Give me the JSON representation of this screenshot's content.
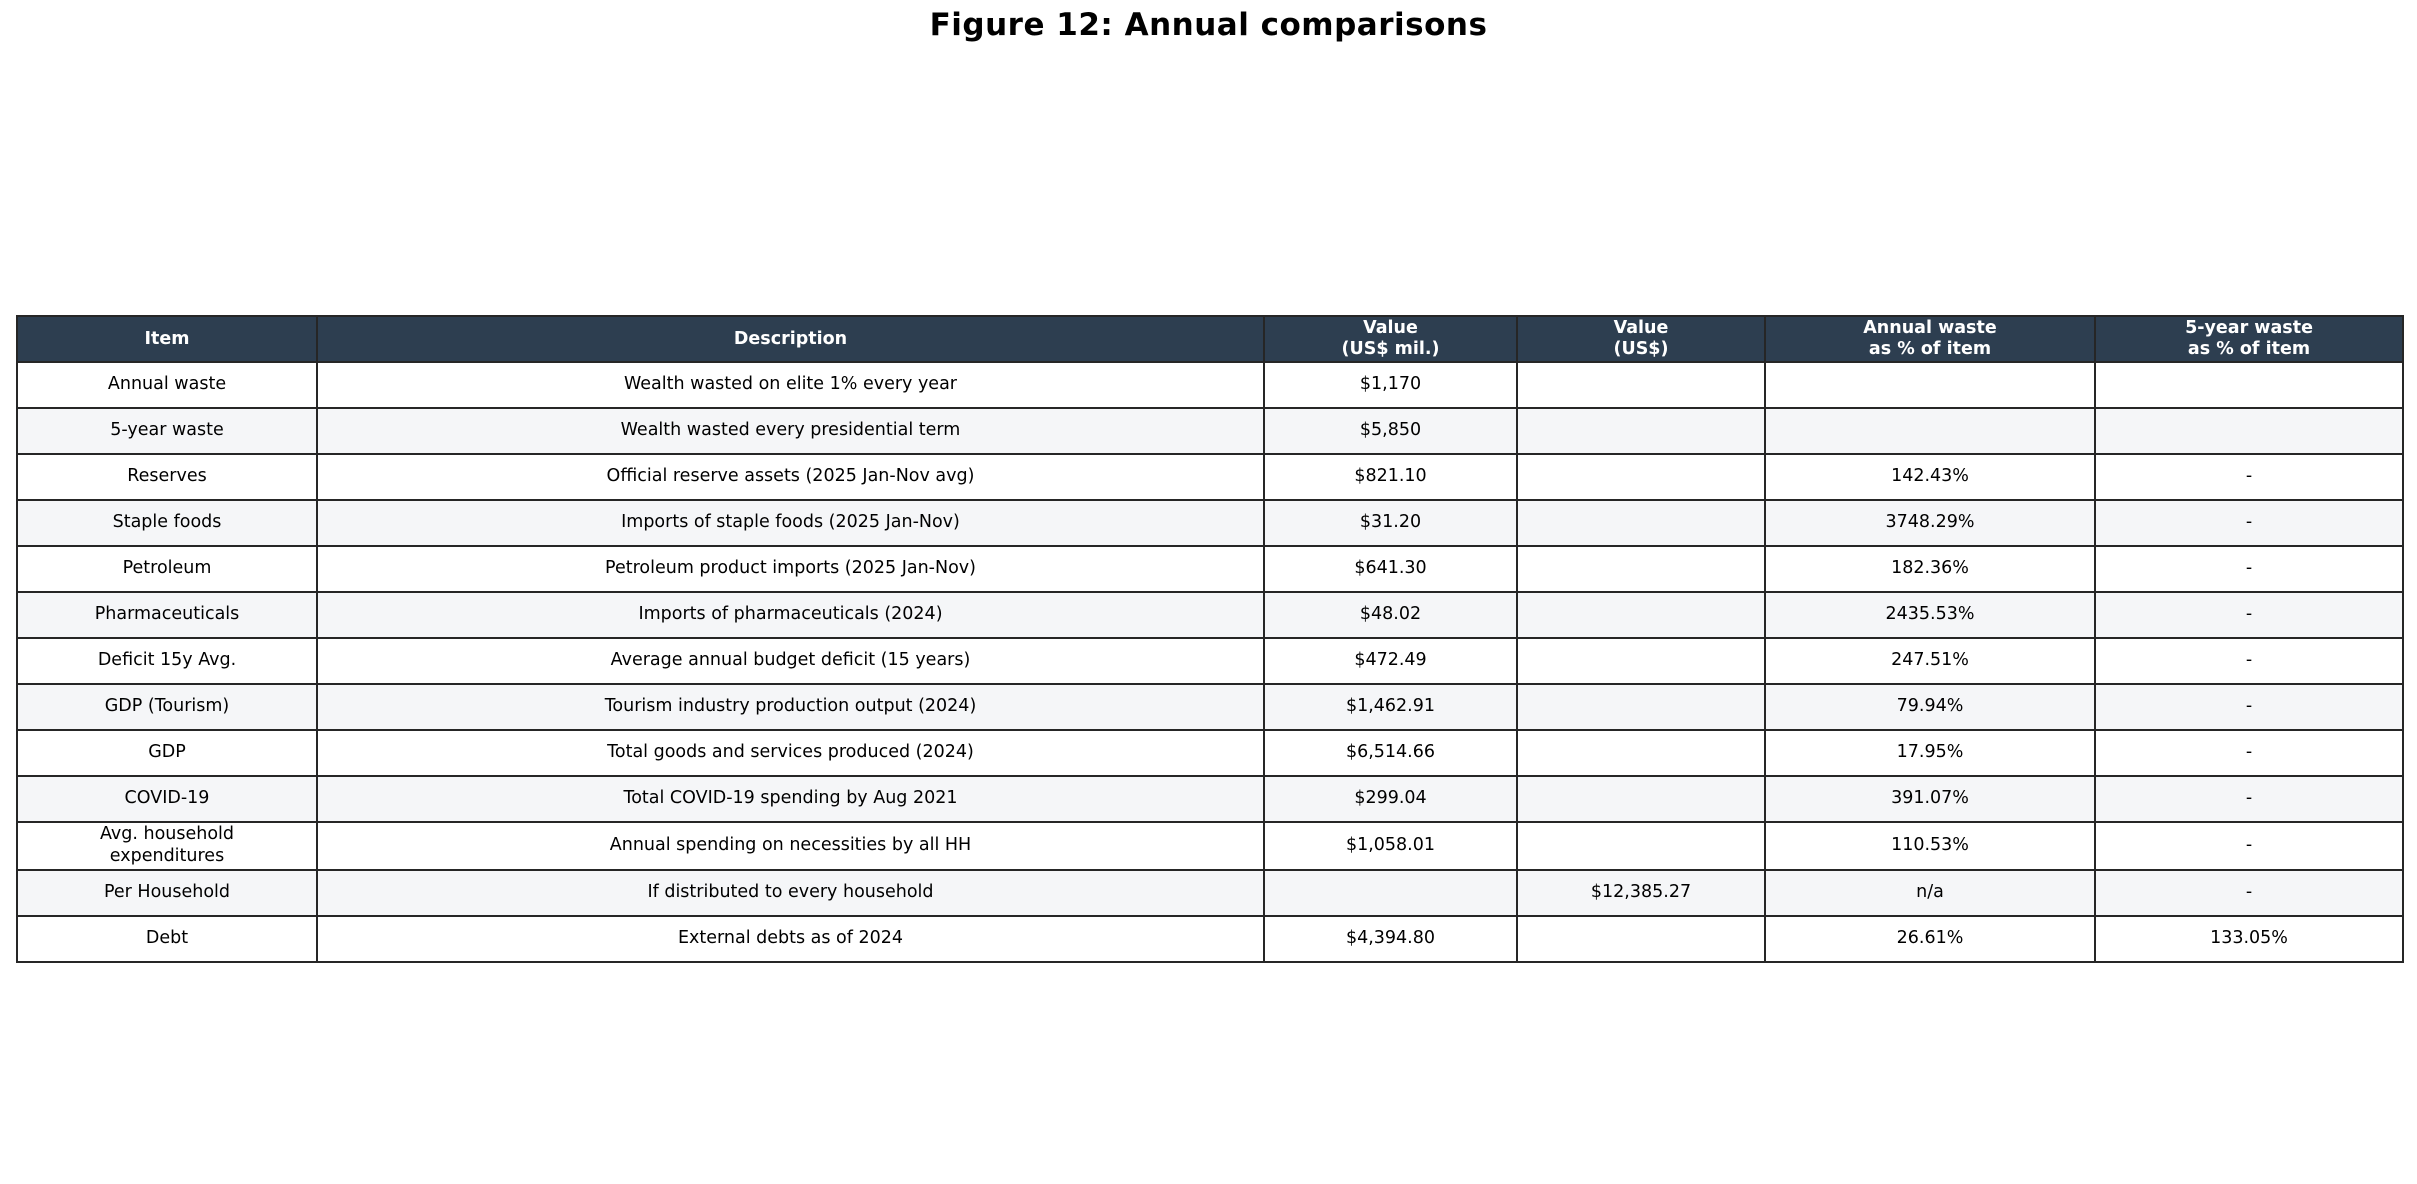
{
  "title": "Figure 12: Annual comparisons",
  "colors": {
    "header_bg": "#2d3e50",
    "header_text": "#ffffff",
    "row_odd_bg": "#ffffff",
    "row_even_bg": "#f5f6f8",
    "border_color": "#262626",
    "text_color": "#000000"
  },
  "chart_data": {
    "type": "table",
    "title": "Figure 12: Annual comparisons",
    "columns": [
      "Item",
      "Description",
      "Value\n(US$ mil.)",
      "Value\n(US$)",
      "Annual waste\nas % of item",
      "5-year waste\nas % of item"
    ],
    "rows": [
      [
        "Annual waste",
        "Wealth wasted on elite 1% every year",
        "$1,170",
        "",
        "",
        ""
      ],
      [
        "5-year waste",
        "Wealth wasted every presidential term",
        "$5,850",
        "",
        "",
        ""
      ],
      [
        "Reserves",
        "Official reserve assets (2025 Jan-Nov avg)",
        "$821.10",
        "",
        "142.43%",
        "-"
      ],
      [
        "Staple foods",
        "Imports of staple foods (2025 Jan-Nov)",
        "$31.20",
        "",
        "3748.29%",
        "-"
      ],
      [
        "Petroleum",
        "Petroleum product imports (2025 Jan-Nov)",
        "$641.30",
        "",
        "182.36%",
        "-"
      ],
      [
        "Pharmaceuticals",
        "Imports of pharmaceuticals (2024)",
        "$48.02",
        "",
        "2435.53%",
        "-"
      ],
      [
        "Deficit 15y Avg.",
        "Average annual budget deficit (15 years)",
        "$472.49",
        "",
        "247.51%",
        "-"
      ],
      [
        "GDP (Tourism)",
        "Tourism industry production output (2024)",
        "$1,462.91",
        "",
        "79.94%",
        "-"
      ],
      [
        "GDP",
        "Total goods and services produced (2024)",
        "$6,514.66",
        "",
        "17.95%",
        "-"
      ],
      [
        "COVID-19",
        "Total COVID-19 spending by Aug 2021",
        "$299.04",
        "",
        "391.07%",
        "-"
      ],
      [
        "Avg. household\nexpenditures",
        "Annual spending on necessities by all HH",
        "$1,058.01",
        "",
        "110.53%",
        "-"
      ],
      [
        "Per Household",
        "If distributed to every household",
        "",
        "$12,385.27",
        "n/a",
        "-"
      ],
      [
        "Debt",
        "External debts as of 2024",
        "$4,394.80",
        "",
        "26.61%",
        "133.05%"
      ]
    ]
  }
}
